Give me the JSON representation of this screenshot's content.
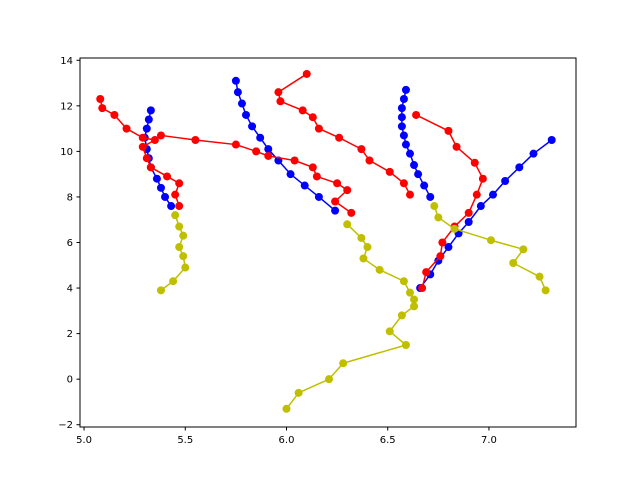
{
  "chart_data": {
    "type": "line",
    "title": "",
    "xlabel": "",
    "ylabel": "",
    "xlim": [
      4.98,
      7.43
    ],
    "ylim": [
      -2.1,
      14.1
    ],
    "xticks": [
      5.0,
      5.5,
      6.0,
      6.5,
      7.0
    ],
    "xtick_labels": [
      "5.0",
      "5.5",
      "6.0",
      "6.5",
      "7.0"
    ],
    "yticks": [
      -2,
      0,
      2,
      4,
      6,
      8,
      10,
      12,
      14
    ],
    "ytick_labels": [
      "−2",
      "0",
      "2",
      "4",
      "6",
      "8",
      "10",
      "12",
      "14"
    ],
    "grid": false,
    "colors": {
      "blue": "#0000ff",
      "red": "#ff0000",
      "olive": "#bfbf00",
      "axes": "#000000",
      "background": "#ffffff"
    },
    "series": [
      {
        "color": "#0000ff",
        "points": [
          [
            5.33,
            11.8
          ],
          [
            5.32,
            11.4
          ],
          [
            5.31,
            11.0
          ],
          [
            5.3,
            10.6
          ],
          [
            5.31,
            10.1
          ],
          [
            5.32,
            9.7
          ],
          [
            5.33,
            9.3
          ],
          [
            5.36,
            8.8
          ],
          [
            5.38,
            8.4
          ],
          [
            5.4,
            8.0
          ],
          [
            5.43,
            7.6
          ]
        ]
      },
      {
        "color": "#0000ff",
        "points": [
          [
            5.75,
            13.1
          ],
          [
            5.76,
            12.6
          ],
          [
            5.78,
            12.1
          ],
          [
            5.8,
            11.6
          ],
          [
            5.83,
            11.1
          ],
          [
            5.87,
            10.6
          ],
          [
            5.91,
            10.1
          ],
          [
            5.96,
            9.6
          ],
          [
            6.02,
            9.0
          ],
          [
            6.09,
            8.5
          ],
          [
            6.16,
            8.0
          ],
          [
            6.24,
            7.4
          ]
        ]
      },
      {
        "color": "#0000ff",
        "points": [
          [
            6.59,
            12.7
          ],
          [
            6.58,
            12.3
          ],
          [
            6.57,
            11.9
          ],
          [
            6.57,
            11.5
          ],
          [
            6.57,
            11.1
          ],
          [
            6.58,
            10.7
          ],
          [
            6.59,
            10.3
          ],
          [
            6.61,
            9.9
          ],
          [
            6.63,
            9.4
          ],
          [
            6.65,
            9.0
          ],
          [
            6.68,
            8.5
          ],
          [
            6.71,
            8.0
          ]
        ]
      },
      {
        "color": "#0000ff",
        "points": [
          [
            6.66,
            4.0
          ],
          [
            6.71,
            4.6
          ],
          [
            6.75,
            5.2
          ],
          [
            6.8,
            5.8
          ],
          [
            6.85,
            6.4
          ],
          [
            6.9,
            6.9
          ],
          [
            6.96,
            7.6
          ],
          [
            7.02,
            8.1
          ],
          [
            7.08,
            8.7
          ],
          [
            7.15,
            9.3
          ],
          [
            7.22,
            9.9
          ],
          [
            7.31,
            10.5
          ]
        ]
      },
      {
        "color": "#ff0000",
        "points": [
          [
            5.08,
            12.3
          ],
          [
            5.09,
            11.9
          ],
          [
            5.15,
            11.6
          ],
          [
            5.21,
            11.0
          ],
          [
            5.29,
            10.6
          ],
          [
            5.35,
            10.5
          ],
          [
            5.29,
            10.2
          ],
          [
            5.31,
            9.7
          ],
          [
            5.33,
            9.3
          ],
          [
            5.41,
            8.9
          ],
          [
            5.47,
            8.6
          ],
          [
            5.45,
            8.1
          ],
          [
            5.47,
            7.6
          ]
        ]
      },
      {
        "color": "#ff0000",
        "points": [
          [
            5.38,
            10.7
          ],
          [
            5.55,
            10.5
          ],
          [
            5.75,
            10.3
          ],
          [
            5.85,
            10.0
          ],
          [
            5.91,
            9.8
          ],
          [
            6.04,
            9.6
          ],
          [
            6.13,
            9.3
          ],
          [
            6.15,
            8.9
          ],
          [
            6.25,
            8.6
          ],
          [
            6.3,
            8.3
          ],
          [
            6.24,
            7.8
          ],
          [
            6.32,
            7.3
          ]
        ]
      },
      {
        "color": "#ff0000",
        "points": [
          [
            6.1,
            13.4
          ],
          [
            5.96,
            12.6
          ],
          [
            5.97,
            12.2
          ],
          [
            6.08,
            11.8
          ],
          [
            6.13,
            11.5
          ],
          [
            6.16,
            11.0
          ],
          [
            6.26,
            10.6
          ],
          [
            6.37,
            10.1
          ],
          [
            6.41,
            9.6
          ],
          [
            6.51,
            9.1
          ],
          [
            6.58,
            8.6
          ],
          [
            6.61,
            8.1
          ]
        ]
      },
      {
        "color": "#ff0000",
        "points": [
          [
            6.64,
            11.6
          ],
          [
            6.8,
            10.9
          ],
          [
            6.84,
            10.2
          ],
          [
            6.93,
            9.5
          ],
          [
            6.97,
            8.8
          ],
          [
            6.94,
            8.1
          ],
          [
            6.9,
            7.3
          ],
          [
            6.83,
            6.7
          ],
          [
            6.77,
            6.0
          ],
          [
            6.76,
            5.4
          ],
          [
            6.69,
            4.7
          ],
          [
            6.67,
            4.0
          ]
        ]
      },
      {
        "color": "#bfbf00",
        "points": [
          [
            5.38,
            3.9
          ],
          [
            5.44,
            4.3
          ],
          [
            5.5,
            4.9
          ],
          [
            5.49,
            5.4
          ],
          [
            5.47,
            5.8
          ],
          [
            5.49,
            6.3
          ],
          [
            5.47,
            6.7
          ],
          [
            5.45,
            7.2
          ]
        ]
      },
      {
        "color": "#bfbf00",
        "points": [
          [
            6.3,
            6.8
          ],
          [
            6.37,
            6.2
          ],
          [
            6.4,
            5.8
          ],
          [
            6.38,
            5.3
          ],
          [
            6.46,
            4.8
          ],
          [
            6.58,
            4.3
          ],
          [
            6.61,
            3.8
          ],
          [
            6.63,
            3.5
          ],
          [
            6.63,
            3.2
          ],
          [
            6.57,
            2.8
          ],
          [
            6.51,
            2.1
          ],
          [
            6.59,
            1.5
          ],
          [
            6.28,
            0.7
          ],
          [
            6.21,
            0.0
          ],
          [
            6.06,
            -0.6
          ],
          [
            6.0,
            -1.3
          ]
        ]
      },
      {
        "color": "#bfbf00",
        "points": [
          [
            6.73,
            7.6
          ],
          [
            6.75,
            7.1
          ],
          [
            6.83,
            6.6
          ],
          [
            7.01,
            6.1
          ],
          [
            7.17,
            5.7
          ],
          [
            7.12,
            5.1
          ],
          [
            7.25,
            4.5
          ],
          [
            7.28,
            3.9
          ]
        ]
      }
    ]
  }
}
